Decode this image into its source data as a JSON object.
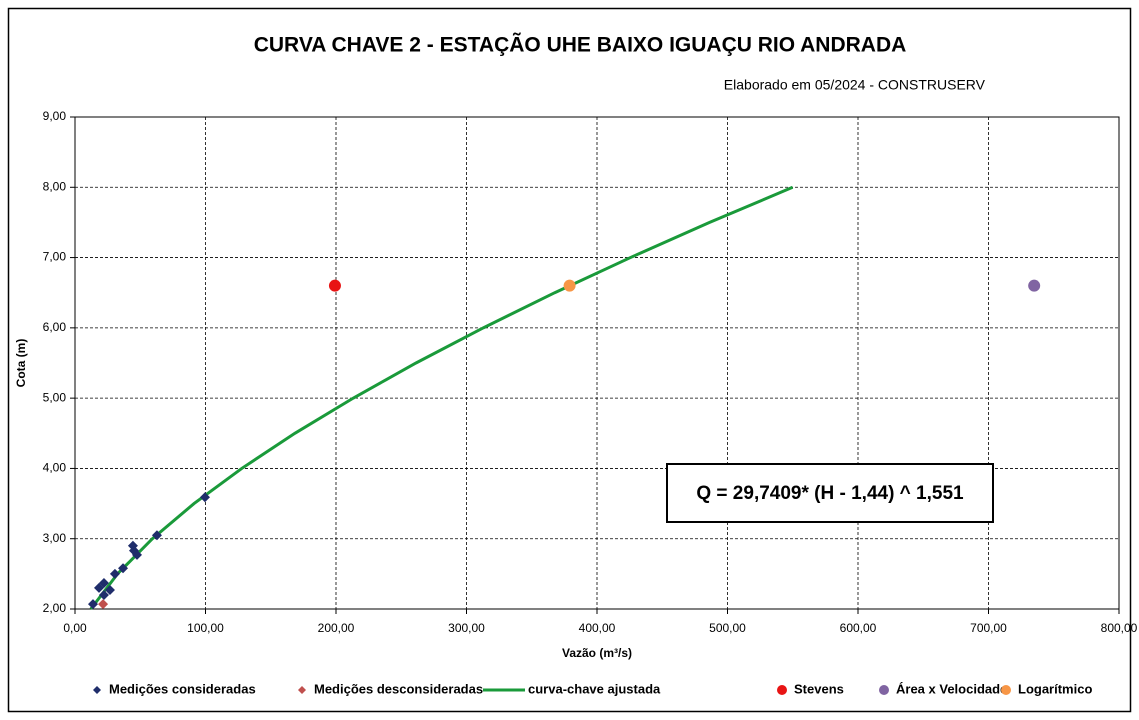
{
  "chart_data": {
    "type": "scatter",
    "title": "CURVA CHAVE 2 - ESTAÇÃO UHE BAIXO IGUAÇU RIO ANDRADA",
    "subtitle": "Elaborado em 05/2024 - CONSTRUSERV",
    "x_label": "Vazão (m³/s)",
    "y_label": "Cota (m)",
    "annotation": "Q = 29,7409* (H - 1,44) ^ 1,551",
    "xlim": [
      0,
      800
    ],
    "ylim": [
      2,
      9
    ],
    "xticks": [
      {
        "value": 0,
        "label": "0,00"
      },
      {
        "value": 100,
        "label": "100,00"
      },
      {
        "value": 200,
        "label": "200,00"
      },
      {
        "value": 300,
        "label": "300,00"
      },
      {
        "value": 400,
        "label": "400,00"
      },
      {
        "value": 500,
        "label": "500,00"
      },
      {
        "value": 600,
        "label": "600,00"
      },
      {
        "value": 700,
        "label": "700,00"
      },
      {
        "value": 800,
        "label": "800,00"
      }
    ],
    "yticks": [
      {
        "value": 2,
        "label": "2,00"
      },
      {
        "value": 3,
        "label": "3,00"
      },
      {
        "value": 4,
        "label": "4,00"
      },
      {
        "value": 5,
        "label": "5,00"
      },
      {
        "value": 6,
        "label": "6,00"
      },
      {
        "value": 7,
        "label": "7,00"
      },
      {
        "value": 8,
        "label": "8,00"
      },
      {
        "value": 9,
        "label": "9,00"
      }
    ],
    "grid": true,
    "legend": "bottom",
    "series": [
      {
        "name": "Medições consideradas",
        "marker": "diamond",
        "color": "#1f2d6b",
        "x": [
          13.8,
          18.4,
          22.2,
          26.8,
          22.2,
          30.6,
          36.8,
          44.4,
          45.2,
          47.5,
          62.8,
          99.6
        ],
        "values": [
          2.07,
          2.3,
          2.37,
          2.27,
          2.2,
          2.5,
          2.58,
          2.9,
          2.83,
          2.77,
          3.05,
          3.59
        ]
      },
      {
        "name": "Medições desconsideradas",
        "marker": "diamond",
        "color": "#c0504d",
        "x": [
          21.5
        ],
        "values": [
          2.07
        ]
      },
      {
        "name": "curva-chave ajustada",
        "marker": "line",
        "color": "#1a9a3a",
        "x": [
          12.1,
          32.6,
          59.3,
          91.2,
          127.8,
          168.5,
          213.2,
          261.3,
          312.9,
          367.6,
          425.6,
          486.3,
          549.9
        ],
        "values": [
          2.0,
          2.5,
          3.0,
          3.5,
          4.0,
          4.5,
          5.0,
          5.5,
          6.0,
          6.5,
          7.0,
          7.5,
          8.0
        ]
      },
      {
        "name": "Stevens",
        "marker": "circle",
        "color": "#e81414",
        "x": [
          199.2
        ],
        "values": [
          6.6
        ]
      },
      {
        "name": "Área x Velocidade",
        "marker": "circle",
        "color": "#8064a2",
        "x": [
          735
        ],
        "values": [
          6.6
        ]
      },
      {
        "name": "Logarítmico",
        "marker": "circle",
        "color": "#f79646",
        "x": [
          379
        ],
        "values": [
          6.6
        ]
      }
    ]
  }
}
